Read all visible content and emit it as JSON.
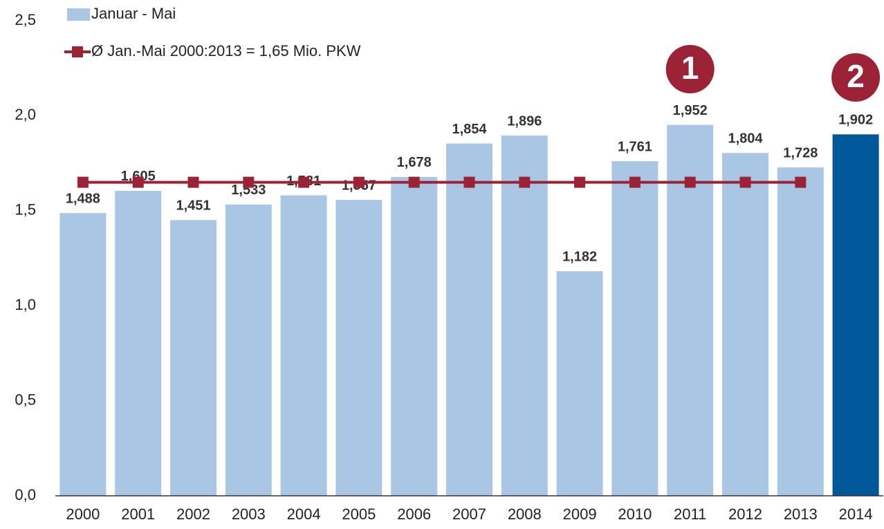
{
  "chart_data": {
    "type": "bar",
    "categories": [
      "2000",
      "2001",
      "2002",
      "2003",
      "2004",
      "2005",
      "2006",
      "2007",
      "2008",
      "2009",
      "2010",
      "2011",
      "2012",
      "2013",
      "2014"
    ],
    "series": [
      {
        "name": "Januar - Mai",
        "type": "bar",
        "colors": [
          "#a9c6e4",
          "#a9c6e4",
          "#a9c6e4",
          "#a9c6e4",
          "#a9c6e4",
          "#a9c6e4",
          "#a9c6e4",
          "#a9c6e4",
          "#a9c6e4",
          "#a9c6e4",
          "#a9c6e4",
          "#a9c6e4",
          "#a9c6e4",
          "#a9c6e4",
          "#00579a"
        ],
        "color": "#a9c6e4",
        "values": [
          1.488,
          1.605,
          1.451,
          1.533,
          1.581,
          1.557,
          1.678,
          1.854,
          1.896,
          1.182,
          1.761,
          1.952,
          1.804,
          1.728,
          1.902
        ],
        "value_labels": [
          "1,488",
          "1,605",
          "1,451",
          "1,533",
          "1,581",
          "1,557",
          "1,678",
          "1,854",
          "1,896",
          "1,182",
          "1,761",
          "1,952",
          "1,804",
          "1,728",
          "1,902"
        ]
      },
      {
        "name": "Ø Jan.-Mai 2000:2013 = 1,65 Mio. PKW",
        "type": "line",
        "color": "#9b2335",
        "values": [
          1.65,
          1.65,
          1.65,
          1.65,
          1.65,
          1.65,
          1.65,
          1.65,
          1.65,
          1.65,
          1.65,
          1.65,
          1.65,
          1.65,
          null
        ]
      }
    ],
    "ylim": [
      0,
      2.5
    ],
    "yticks": [
      {
        "value": 0,
        "label": "0,0"
      },
      {
        "value": 0.5,
        "label": "0,5"
      },
      {
        "value": 1,
        "label": "1,0"
      },
      {
        "value": 1.5,
        "label": "1,5"
      },
      {
        "value": 2,
        "label": "2,0"
      },
      {
        "value": 2.5,
        "label": "2,5"
      }
    ],
    "annotations": [
      {
        "text": "1",
        "category": 11
      },
      {
        "text": "2",
        "category": 14
      }
    ],
    "grid": false
  }
}
